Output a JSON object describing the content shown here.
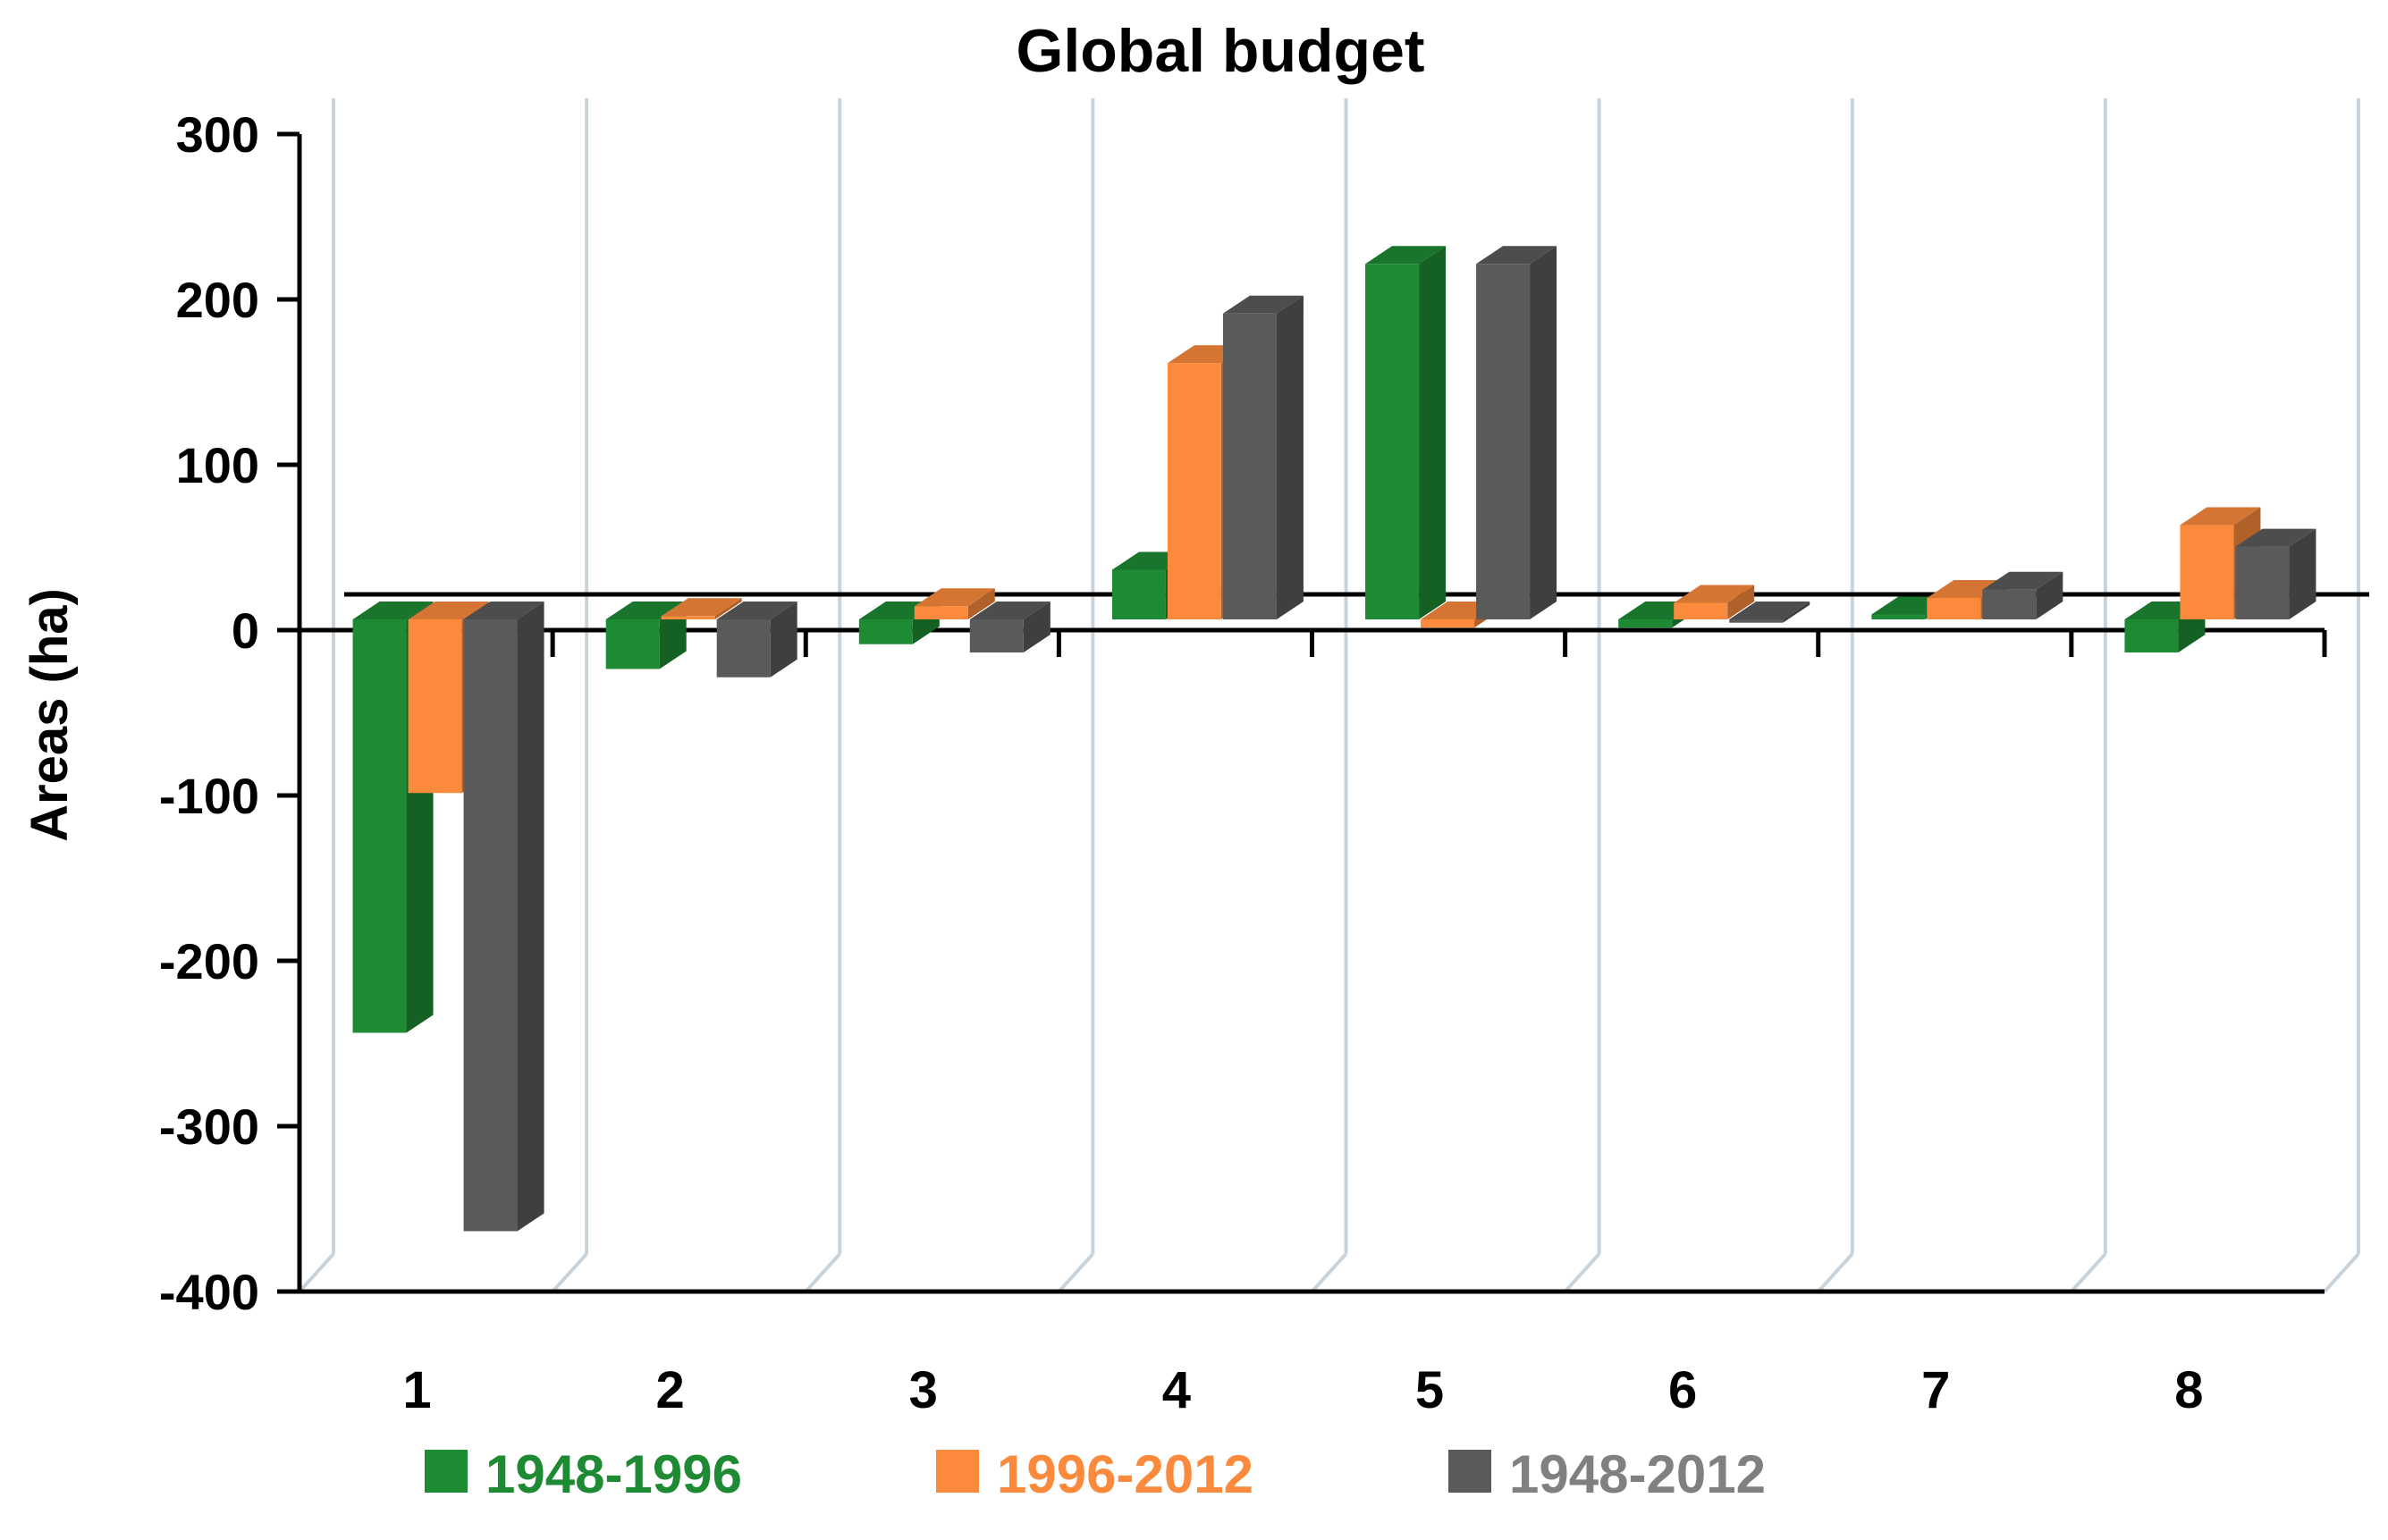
{
  "chart_data": {
    "type": "bar",
    "title": "Global budget",
    "xlabel": "",
    "ylabel": "Areas (ha)",
    "ylim": [
      -400,
      300
    ],
    "yticks": [
      "300",
      "200",
      "100",
      "0",
      "-100",
      "-200",
      "-300",
      "-400"
    ],
    "categories": [
      "1",
      "2",
      "3",
      "4",
      "5",
      "6",
      "7",
      "8"
    ],
    "series": [
      {
        "name": "1948-1996",
        "color": "#1e8a34",
        "values": [
          -250,
          -30,
          -15,
          30,
          215,
          -5,
          3,
          -20
        ]
      },
      {
        "name": "1996-2012",
        "color": "#fb8a3c",
        "values": [
          -105,
          2,
          8,
          155,
          -5,
          10,
          13,
          57
        ]
      },
      {
        "name": "1948-2012",
        "color": "#5a5a5a",
        "values": [
          -370,
          -35,
          -20,
          185,
          215,
          -2,
          18,
          44
        ]
      }
    ],
    "legend_position": "bottom"
  }
}
